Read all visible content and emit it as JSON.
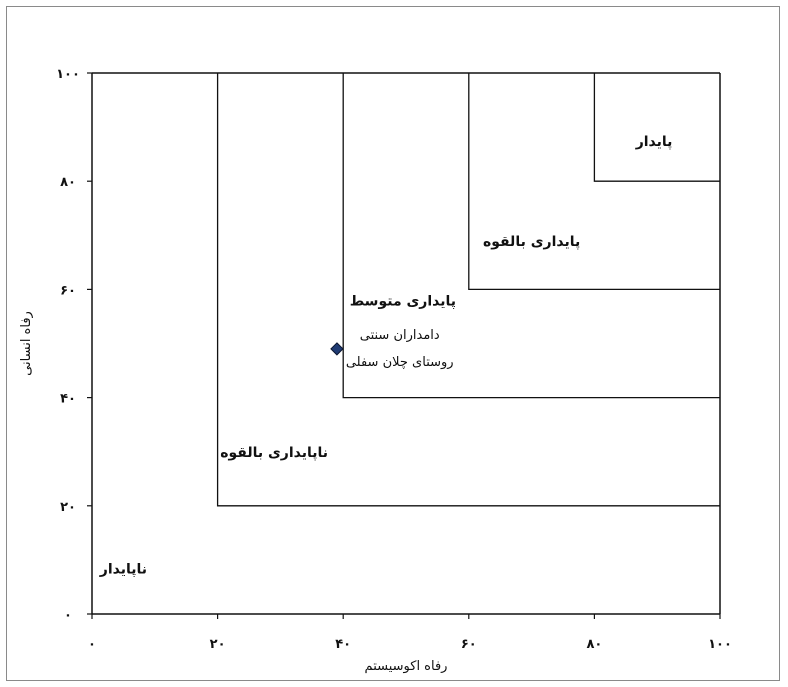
{
  "chart_data": {
    "type": "scatter",
    "title": "",
    "xlabel": "رفاه اکوسیستم",
    "ylabel": "رفاه انسانی",
    "xlim": [
      0,
      100
    ],
    "ylim": [
      0,
      100
    ],
    "x_ticks": [
      "۰",
      "۲۰",
      "۴۰",
      "۶۰",
      "۸۰",
      "۱۰۰"
    ],
    "y_ticks": [
      "۰",
      "۲۰",
      "۴۰",
      "۶۰",
      "۸۰",
      "۱۰۰"
    ],
    "grid": false,
    "regions": [
      {
        "name": "ناپایدار",
        "x_min": 0,
        "y_min": 0
      },
      {
        "name": "ناپایداری بالقوه",
        "x_min": 20,
        "y_min": 20
      },
      {
        "name": "پایداری متوسط",
        "x_min": 40,
        "y_min": 40
      },
      {
        "name": "پایداری بالقوه",
        "x_min": 60,
        "y_min": 60
      },
      {
        "name": "پایدار",
        "x_min": 80,
        "y_min": 80
      }
    ],
    "points": [
      {
        "x": 39,
        "y": 49,
        "label_lines": [
          "دامداران  سنتی",
          "روستای چلان سفلی"
        ],
        "color": "#1f3b73"
      }
    ]
  }
}
